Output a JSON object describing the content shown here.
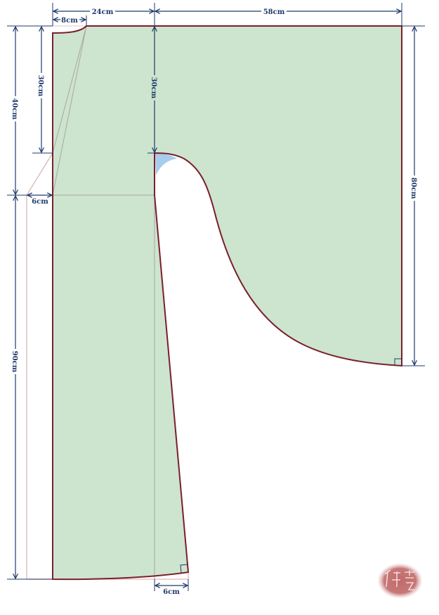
{
  "colors": {
    "fabric": "#cde4cf",
    "outline": "#7a1f2b",
    "dimension": "#1f3a6b",
    "guide": "#c9a3a3",
    "armhole_patch": "#a8ccec",
    "seal": "#c06a6a"
  },
  "dimensions": {
    "top_left_width": "24cm",
    "top_right_width": "58cm",
    "collar_width": "8cm",
    "left_outer_height": "40cm",
    "left_inner_height": "30cm",
    "center_height": "30cm",
    "side_offset": "6cm",
    "lower_height": "90cm",
    "sleeve_height": "80cm",
    "hem_offset": "6cm"
  },
  "seal": {
    "text": "浮雲"
  }
}
